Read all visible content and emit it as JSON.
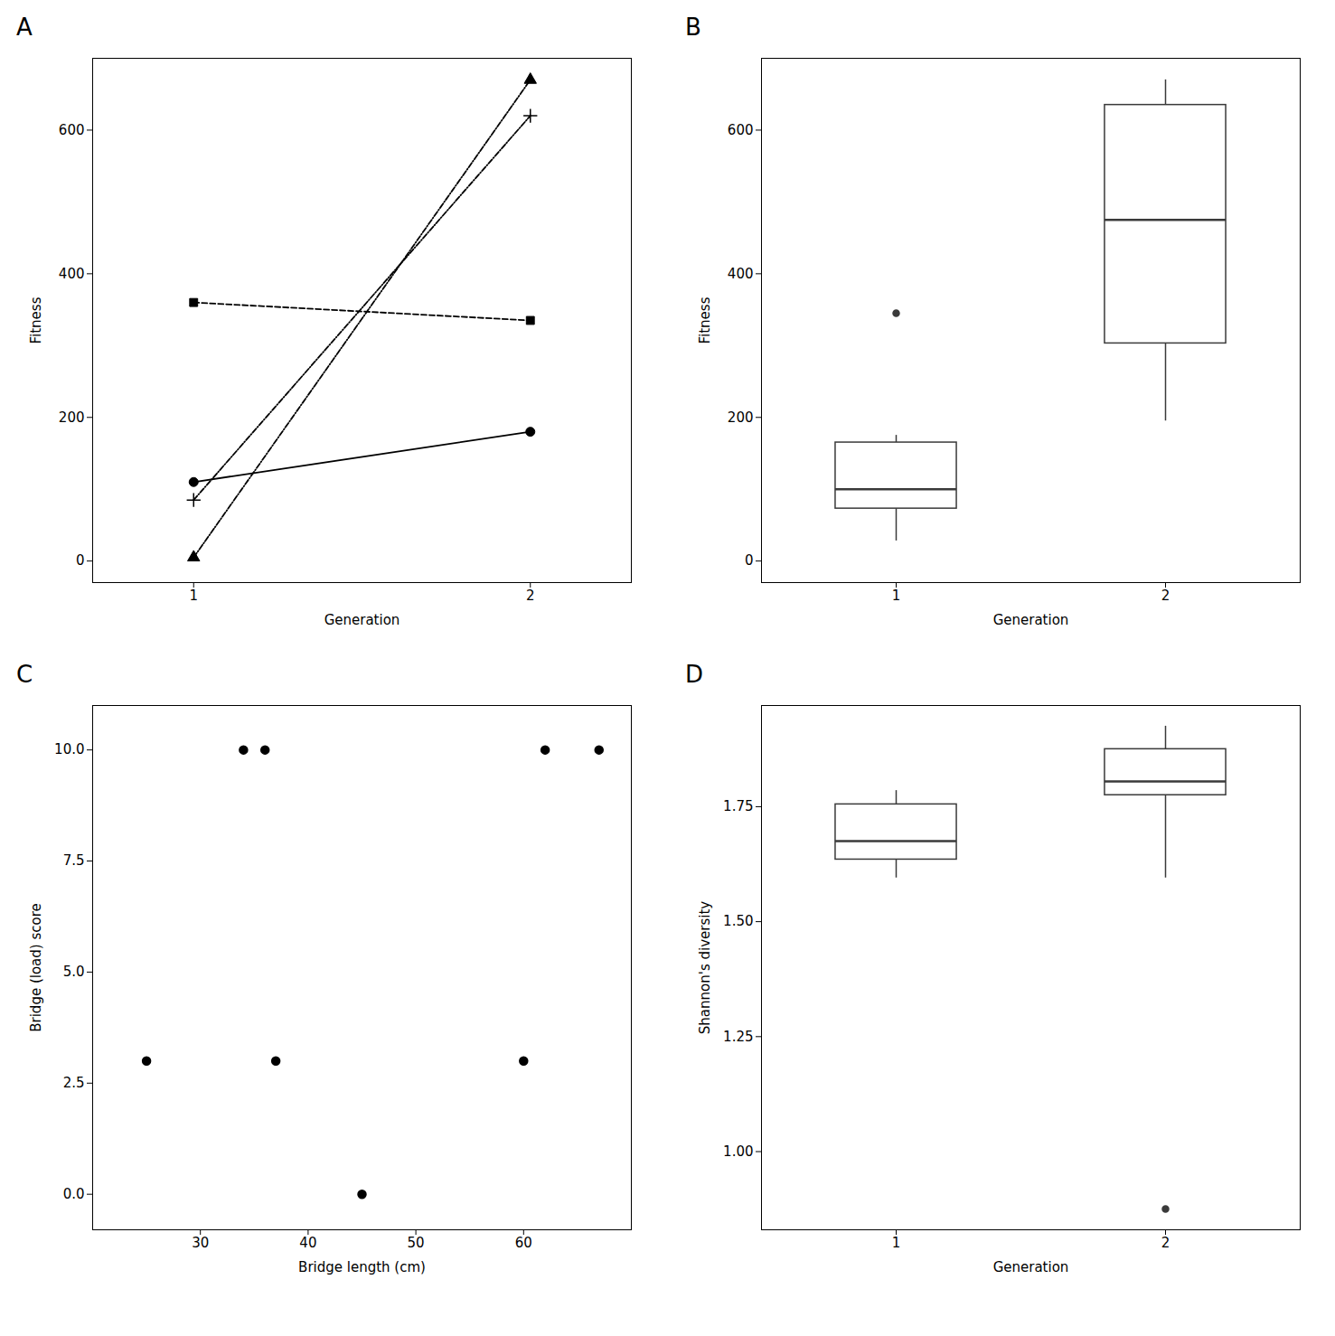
{
  "chart_data": [
    {
      "type": "line",
      "title": "A",
      "xlabel": "Generation",
      "ylabel": "Fitness",
      "x": [
        1,
        2
      ],
      "xlim": [
        0.7,
        2.3
      ],
      "xticks": [
        1,
        2
      ],
      "ylim": [
        -30,
        700
      ],
      "yticks": [
        0,
        200,
        400,
        600
      ],
      "series": [
        {
          "values": [
            110,
            180
          ],
          "marker": "circle",
          "line_style": "solid",
          "color": "black"
        },
        {
          "values": [
            360,
            335
          ],
          "marker": "square",
          "line_style": "dashed",
          "color": "black"
        },
        {
          "values": [
            5,
            670
          ],
          "marker": "triangle",
          "line_style": "dashdot",
          "color": "black"
        },
        {
          "values": [
            85,
            620
          ],
          "marker": "plus",
          "line_style": "dashdot",
          "color": "black"
        }
      ]
    },
    {
      "type": "box",
      "title": "B",
      "xlabel": "Generation",
      "ylabel": "Fitness",
      "x": [
        1,
        2
      ],
      "xlim": [
        0.5,
        2.5
      ],
      "xticks": [
        1,
        2
      ],
      "ylim": [
        -30,
        700
      ],
      "yticks": [
        0,
        200,
        400,
        600
      ],
      "color": "#3a3a3a",
      "boxes": [
        {
          "q1": 73,
          "median": 100,
          "q3": 165,
          "whisker_low": 28,
          "whisker_high": 175,
          "outliers": [
            345
          ]
        },
        {
          "q1": 303,
          "median": 475,
          "q3": 635,
          "whisker_low": 195,
          "whisker_high": 670,
          "outliers": []
        }
      ]
    },
    {
      "type": "scatter",
      "title": "C",
      "xlabel": "Bridge length (cm)",
      "ylabel": "Bridge (load) score",
      "x": [
        25,
        34,
        36,
        37,
        45,
        60,
        62,
        67
      ],
      "values": [
        3.0,
        10.0,
        10.0,
        3.0,
        0.0,
        3.0,
        10.0,
        10.0
      ],
      "xlim": [
        20,
        70
      ],
      "xticks": [
        30,
        40,
        50,
        60
      ],
      "ylim": [
        -0.8,
        11
      ],
      "yticks": [
        {
          "value": 0,
          "label": "0.0"
        },
        2.5,
        {
          "value": 5,
          "label": "5.0"
        },
        7.5,
        {
          "value": 10,
          "label": "10.0"
        }
      ],
      "color": "black"
    },
    {
      "type": "box",
      "title": "D",
      "xlabel": "Generation",
      "ylabel": "Shannon's diversity",
      "x": [
        1,
        2
      ],
      "xlim": [
        0.5,
        2.5
      ],
      "xticks": [
        1,
        2
      ],
      "ylim": [
        0.83,
        1.97
      ],
      "yticks": [
        {
          "value": 1,
          "label": "1.00"
        },
        1.25,
        {
          "value": 1.5,
          "label": "1.50"
        },
        1.75
      ],
      "color": "#3a3a3a",
      "boxes": [
        {
          "q1": 1.635,
          "median": 1.675,
          "q3": 1.755,
          "whisker_low": 1.595,
          "whisker_high": 1.785,
          "outliers": []
        },
        {
          "q1": 1.775,
          "median": 1.805,
          "q3": 1.875,
          "whisker_low": 1.595,
          "whisker_high": 1.925,
          "outliers": [
            0.875
          ]
        }
      ]
    }
  ]
}
